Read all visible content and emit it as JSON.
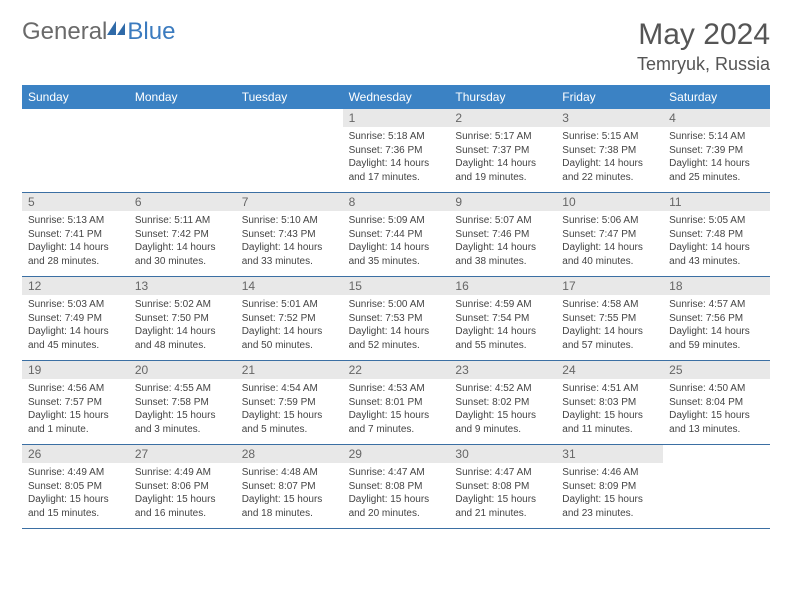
{
  "brand": {
    "part1": "General",
    "part2": "Blue"
  },
  "title": "May 2024",
  "location": "Temryuk, Russia",
  "colors": {
    "header_bg": "#3b82c4",
    "header_text": "#ffffff",
    "daynum_bg": "#e8e8e8",
    "daynum_text": "#666666",
    "info_text": "#444444",
    "rule": "#3b6fa3",
    "title_text": "#555555",
    "logo_gray": "#6a6a6a",
    "logo_blue": "#3b7bbf"
  },
  "dow": [
    "Sunday",
    "Monday",
    "Tuesday",
    "Wednesday",
    "Thursday",
    "Friday",
    "Saturday"
  ],
  "weeks": [
    [
      {
        "n": "",
        "sr": "",
        "ss": "",
        "dl1": "",
        "dl2": ""
      },
      {
        "n": "",
        "sr": "",
        "ss": "",
        "dl1": "",
        "dl2": ""
      },
      {
        "n": "",
        "sr": "",
        "ss": "",
        "dl1": "",
        "dl2": ""
      },
      {
        "n": "1",
        "sr": "Sunrise: 5:18 AM",
        "ss": "Sunset: 7:36 PM",
        "dl1": "Daylight: 14 hours",
        "dl2": "and 17 minutes."
      },
      {
        "n": "2",
        "sr": "Sunrise: 5:17 AM",
        "ss": "Sunset: 7:37 PM",
        "dl1": "Daylight: 14 hours",
        "dl2": "and 19 minutes."
      },
      {
        "n": "3",
        "sr": "Sunrise: 5:15 AM",
        "ss": "Sunset: 7:38 PM",
        "dl1": "Daylight: 14 hours",
        "dl2": "and 22 minutes."
      },
      {
        "n": "4",
        "sr": "Sunrise: 5:14 AM",
        "ss": "Sunset: 7:39 PM",
        "dl1": "Daylight: 14 hours",
        "dl2": "and 25 minutes."
      }
    ],
    [
      {
        "n": "5",
        "sr": "Sunrise: 5:13 AM",
        "ss": "Sunset: 7:41 PM",
        "dl1": "Daylight: 14 hours",
        "dl2": "and 28 minutes."
      },
      {
        "n": "6",
        "sr": "Sunrise: 5:11 AM",
        "ss": "Sunset: 7:42 PM",
        "dl1": "Daylight: 14 hours",
        "dl2": "and 30 minutes."
      },
      {
        "n": "7",
        "sr": "Sunrise: 5:10 AM",
        "ss": "Sunset: 7:43 PM",
        "dl1": "Daylight: 14 hours",
        "dl2": "and 33 minutes."
      },
      {
        "n": "8",
        "sr": "Sunrise: 5:09 AM",
        "ss": "Sunset: 7:44 PM",
        "dl1": "Daylight: 14 hours",
        "dl2": "and 35 minutes."
      },
      {
        "n": "9",
        "sr": "Sunrise: 5:07 AM",
        "ss": "Sunset: 7:46 PM",
        "dl1": "Daylight: 14 hours",
        "dl2": "and 38 minutes."
      },
      {
        "n": "10",
        "sr": "Sunrise: 5:06 AM",
        "ss": "Sunset: 7:47 PM",
        "dl1": "Daylight: 14 hours",
        "dl2": "and 40 minutes."
      },
      {
        "n": "11",
        "sr": "Sunrise: 5:05 AM",
        "ss": "Sunset: 7:48 PM",
        "dl1": "Daylight: 14 hours",
        "dl2": "and 43 minutes."
      }
    ],
    [
      {
        "n": "12",
        "sr": "Sunrise: 5:03 AM",
        "ss": "Sunset: 7:49 PM",
        "dl1": "Daylight: 14 hours",
        "dl2": "and 45 minutes."
      },
      {
        "n": "13",
        "sr": "Sunrise: 5:02 AM",
        "ss": "Sunset: 7:50 PM",
        "dl1": "Daylight: 14 hours",
        "dl2": "and 48 minutes."
      },
      {
        "n": "14",
        "sr": "Sunrise: 5:01 AM",
        "ss": "Sunset: 7:52 PM",
        "dl1": "Daylight: 14 hours",
        "dl2": "and 50 minutes."
      },
      {
        "n": "15",
        "sr": "Sunrise: 5:00 AM",
        "ss": "Sunset: 7:53 PM",
        "dl1": "Daylight: 14 hours",
        "dl2": "and 52 minutes."
      },
      {
        "n": "16",
        "sr": "Sunrise: 4:59 AM",
        "ss": "Sunset: 7:54 PM",
        "dl1": "Daylight: 14 hours",
        "dl2": "and 55 minutes."
      },
      {
        "n": "17",
        "sr": "Sunrise: 4:58 AM",
        "ss": "Sunset: 7:55 PM",
        "dl1": "Daylight: 14 hours",
        "dl2": "and 57 minutes."
      },
      {
        "n": "18",
        "sr": "Sunrise: 4:57 AM",
        "ss": "Sunset: 7:56 PM",
        "dl1": "Daylight: 14 hours",
        "dl2": "and 59 minutes."
      }
    ],
    [
      {
        "n": "19",
        "sr": "Sunrise: 4:56 AM",
        "ss": "Sunset: 7:57 PM",
        "dl1": "Daylight: 15 hours",
        "dl2": "and 1 minute."
      },
      {
        "n": "20",
        "sr": "Sunrise: 4:55 AM",
        "ss": "Sunset: 7:58 PM",
        "dl1": "Daylight: 15 hours",
        "dl2": "and 3 minutes."
      },
      {
        "n": "21",
        "sr": "Sunrise: 4:54 AM",
        "ss": "Sunset: 7:59 PM",
        "dl1": "Daylight: 15 hours",
        "dl2": "and 5 minutes."
      },
      {
        "n": "22",
        "sr": "Sunrise: 4:53 AM",
        "ss": "Sunset: 8:01 PM",
        "dl1": "Daylight: 15 hours",
        "dl2": "and 7 minutes."
      },
      {
        "n": "23",
        "sr": "Sunrise: 4:52 AM",
        "ss": "Sunset: 8:02 PM",
        "dl1": "Daylight: 15 hours",
        "dl2": "and 9 minutes."
      },
      {
        "n": "24",
        "sr": "Sunrise: 4:51 AM",
        "ss": "Sunset: 8:03 PM",
        "dl1": "Daylight: 15 hours",
        "dl2": "and 11 minutes."
      },
      {
        "n": "25",
        "sr": "Sunrise: 4:50 AM",
        "ss": "Sunset: 8:04 PM",
        "dl1": "Daylight: 15 hours",
        "dl2": "and 13 minutes."
      }
    ],
    [
      {
        "n": "26",
        "sr": "Sunrise: 4:49 AM",
        "ss": "Sunset: 8:05 PM",
        "dl1": "Daylight: 15 hours",
        "dl2": "and 15 minutes."
      },
      {
        "n": "27",
        "sr": "Sunrise: 4:49 AM",
        "ss": "Sunset: 8:06 PM",
        "dl1": "Daylight: 15 hours",
        "dl2": "and 16 minutes."
      },
      {
        "n": "28",
        "sr": "Sunrise: 4:48 AM",
        "ss": "Sunset: 8:07 PM",
        "dl1": "Daylight: 15 hours",
        "dl2": "and 18 minutes."
      },
      {
        "n": "29",
        "sr": "Sunrise: 4:47 AM",
        "ss": "Sunset: 8:08 PM",
        "dl1": "Daylight: 15 hours",
        "dl2": "and 20 minutes."
      },
      {
        "n": "30",
        "sr": "Sunrise: 4:47 AM",
        "ss": "Sunset: 8:08 PM",
        "dl1": "Daylight: 15 hours",
        "dl2": "and 21 minutes."
      },
      {
        "n": "31",
        "sr": "Sunrise: 4:46 AM",
        "ss": "Sunset: 8:09 PM",
        "dl1": "Daylight: 15 hours",
        "dl2": "and 23 minutes."
      },
      {
        "n": "",
        "sr": "",
        "ss": "",
        "dl1": "",
        "dl2": ""
      }
    ]
  ]
}
